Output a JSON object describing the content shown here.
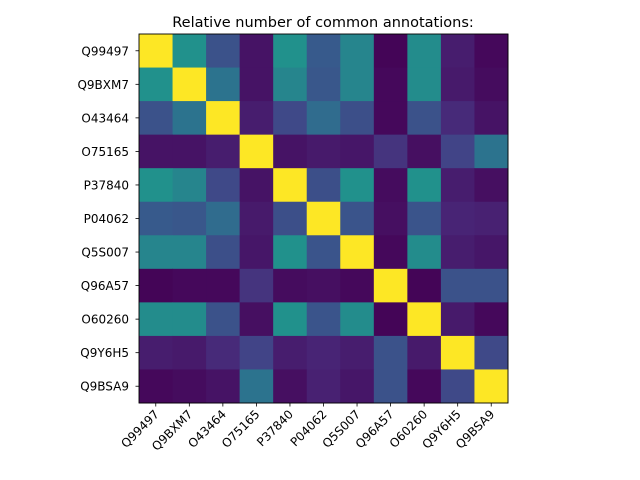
{
  "chart_data": {
    "type": "heatmap",
    "title": "Relative number of common annotations:",
    "xlabel": "",
    "ylabel": "",
    "colormap": "viridis",
    "value_range": [
      0,
      1
    ],
    "grid": false,
    "legend": "none",
    "row_labels": [
      "Q99497",
      "Q9BXM7",
      "O43464",
      "O75165",
      "P37840",
      "P04062",
      "Q5S007",
      "Q96A57",
      "O60260",
      "Q9Y6H5",
      "Q9BSA9"
    ],
    "col_labels": [
      "Q99497",
      "Q9BXM7",
      "O43464",
      "O75165",
      "P37840",
      "P04062",
      "Q5S007",
      "Q96A57",
      "O60260",
      "Q9Y6H5",
      "Q9BSA9"
    ],
    "values": [
      [
        1.0,
        0.5,
        0.25,
        0.05,
        0.5,
        0.28,
        0.45,
        0.01,
        0.48,
        0.08,
        0.02
      ],
      [
        0.5,
        1.0,
        0.38,
        0.05,
        0.45,
        0.27,
        0.45,
        0.02,
        0.48,
        0.07,
        0.03
      ],
      [
        0.25,
        0.38,
        1.0,
        0.08,
        0.22,
        0.35,
        0.24,
        0.02,
        0.25,
        0.12,
        0.05
      ],
      [
        0.05,
        0.05,
        0.08,
        1.0,
        0.05,
        0.07,
        0.06,
        0.15,
        0.04,
        0.2,
        0.38
      ],
      [
        0.5,
        0.45,
        0.22,
        0.05,
        1.0,
        0.24,
        0.5,
        0.03,
        0.5,
        0.08,
        0.04
      ],
      [
        0.28,
        0.27,
        0.35,
        0.07,
        0.24,
        1.0,
        0.26,
        0.04,
        0.26,
        0.1,
        0.09
      ],
      [
        0.45,
        0.45,
        0.24,
        0.06,
        0.5,
        0.26,
        1.0,
        0.02,
        0.48,
        0.08,
        0.06
      ],
      [
        0.01,
        0.02,
        0.02,
        0.15,
        0.03,
        0.04,
        0.02,
        1.0,
        0.01,
        0.25,
        0.25
      ],
      [
        0.48,
        0.48,
        0.25,
        0.04,
        0.5,
        0.26,
        0.48,
        0.01,
        1.0,
        0.07,
        0.02
      ],
      [
        0.08,
        0.07,
        0.12,
        0.2,
        0.08,
        0.1,
        0.08,
        0.25,
        0.07,
        1.0,
        0.22
      ],
      [
        0.02,
        0.03,
        0.05,
        0.38,
        0.04,
        0.09,
        0.06,
        0.25,
        0.02,
        0.22,
        1.0
      ]
    ]
  }
}
